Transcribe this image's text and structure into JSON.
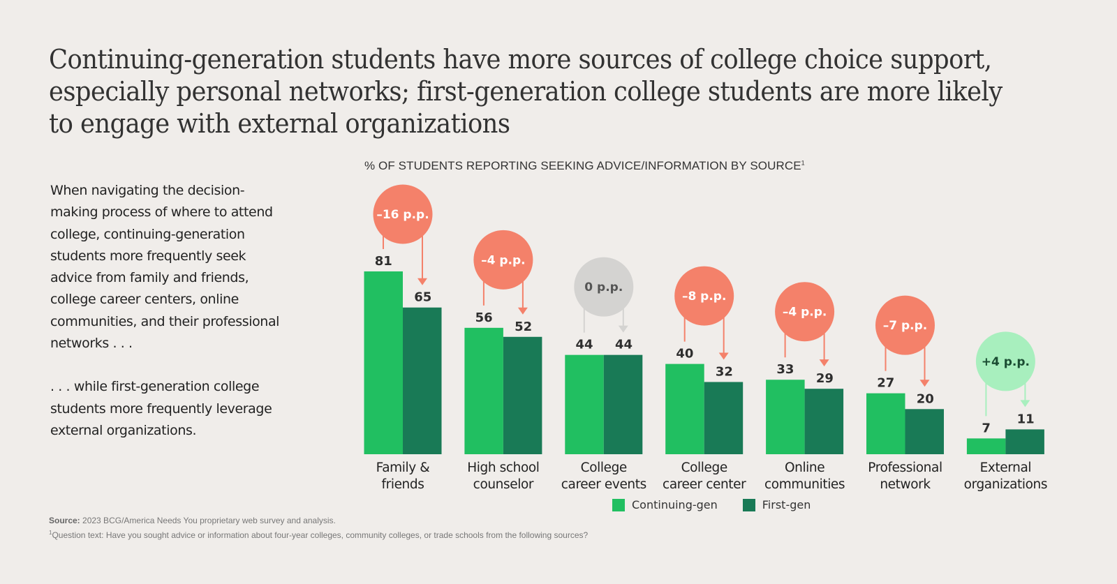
{
  "title": "Continuing-generation students have more sources of college choice support, especially personal networks; first-generation college students are more likely to engage with external organizations",
  "body": {
    "paragraph1": "When navigating the decision-making process of where to attend college, continuing-generation students more frequently seek advice from family and friends, college career centers, online communities, and their professional networks . . .",
    "paragraph2": ". . . while first-generation college students more frequently leverage external organizations."
  },
  "footnotes": {
    "source_label": "Source:",
    "source_text": "2023 BCG/America Needs You proprietary web survey and analysis.",
    "note_marker": "1",
    "note_text": "Question text: Have you sought advice or information about four-year colleges, community colleges, or trade schools from the following sources?"
  },
  "colors": {
    "continuing": "#21bf61",
    "first": "#197a56",
    "negative": "#f4816a",
    "neutral": "#d4d3d1",
    "positive": "#a8efbe",
    "text_dark": "#2e2e2e"
  },
  "chart_data": {
    "type": "bar",
    "title": "% OF STUDENTS REPORTING SEEKING ADVICE/INFORMATION BY SOURCE",
    "title_footnote_marker": "1",
    "xlabel": "",
    "ylabel": "",
    "ylim": [
      0,
      100
    ],
    "grid": false,
    "legend_position": "bottom",
    "categories": [
      [
        "Family &",
        "friends"
      ],
      [
        "High school",
        "counselor"
      ],
      [
        "College",
        "career events"
      ],
      [
        "College",
        "career center"
      ],
      [
        "Online",
        "communities"
      ],
      [
        "Professional",
        "network"
      ],
      [
        "External",
        "organizations"
      ]
    ],
    "series": [
      {
        "name": "Continuing-gen",
        "values": [
          81,
          56,
          44,
          40,
          33,
          27,
          7
        ]
      },
      {
        "name": "First-gen",
        "values": [
          65,
          52,
          44,
          32,
          29,
          20,
          11
        ]
      }
    ],
    "annotations": [
      {
        "label": "–16 p.p.",
        "delta": -16
      },
      {
        "label": "–4 p.p.",
        "delta": -4
      },
      {
        "label": "0 p.p.",
        "delta": 0
      },
      {
        "label": "–8 p.p.",
        "delta": -8
      },
      {
        "label": "–4 p.p.",
        "delta": -4
      },
      {
        "label": "–7 p.p.",
        "delta": -7
      },
      {
        "label": "+4 p.p.",
        "delta": 4
      }
    ]
  }
}
